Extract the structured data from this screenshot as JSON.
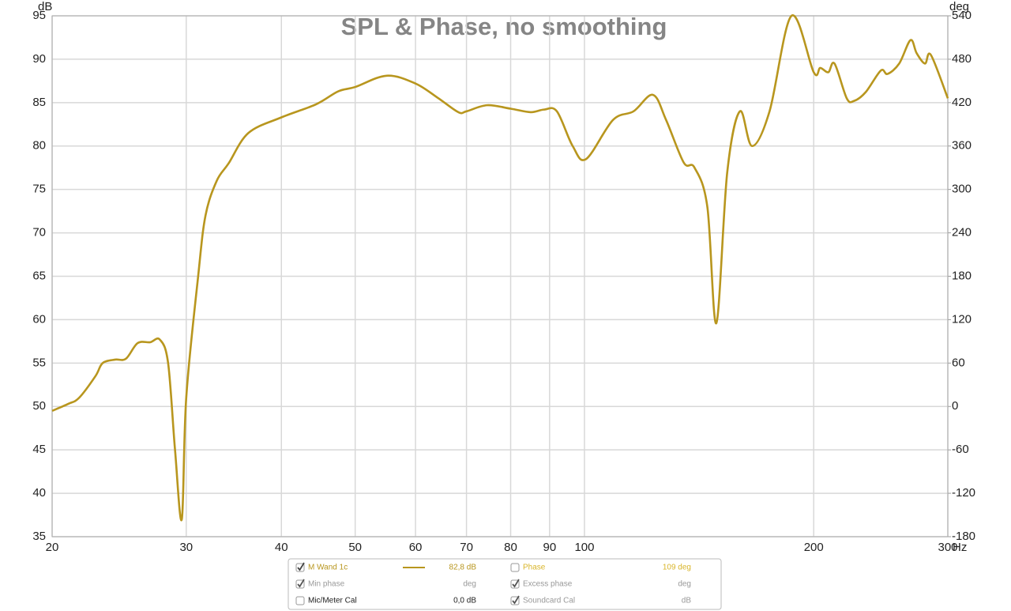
{
  "chart_data": {
    "type": "line",
    "title": "SPL & Phase, no smoothing",
    "y_label": "dB",
    "y2_label": "deg",
    "x_label": "Hz",
    "x_scale": "log",
    "xlim": [
      20,
      300
    ],
    "xticks": [
      20,
      30,
      40,
      50,
      60,
      70,
      80,
      90,
      100,
      200,
      300
    ],
    "ylim": [
      35,
      95
    ],
    "yticks": [
      35,
      40,
      45,
      50,
      55,
      60,
      65,
      70,
      75,
      80,
      85,
      90,
      95
    ],
    "y2lim": [
      -180,
      540
    ],
    "y2ticks": [
      -180,
      -120,
      -60,
      0,
      60,
      120,
      180,
      240,
      300,
      360,
      420,
      480,
      540
    ],
    "grid": true,
    "x": [
      20,
      21,
      21.7,
      22.8,
      23.3,
      24.2,
      25.0,
      25.9,
      26.9,
      27.7,
      28.4,
      29.0,
      29.6,
      30,
      31.1,
      31.8,
      32.9,
      34.1,
      36.2,
      40,
      44.4,
      47.5,
      50,
      55,
      60,
      64.3,
      68.3,
      70,
      74.5,
      80,
      85,
      88.5,
      92,
      96.5,
      100.5,
      109,
      116,
      123,
      128,
      135,
      139.5,
      145,
      149,
      154,
      160,
      166,
      175,
      187,
      200,
      204,
      209,
      213,
      221,
      226,
      234,
      245,
      250,
      259,
      268,
      273,
      280,
      285,
      300
    ],
    "series": [
      {
        "name": "M Wand 1c",
        "color": "#b8961e",
        "values": [
          49.5,
          50.3,
          51.0,
          53.5,
          55.0,
          55.4,
          55.5,
          57.3,
          57.4,
          57.7,
          55.0,
          45.0,
          37.0,
          51.0,
          65.0,
          72.0,
          76.0,
          78.0,
          81.5,
          83.3,
          84.8,
          86.3,
          86.8,
          88.1,
          87.2,
          85.5,
          83.9,
          84.0,
          84.7,
          84.3,
          83.9,
          84.2,
          84.0,
          80.0,
          78.5,
          83.0,
          84.0,
          85.9,
          83.0,
          78.1,
          77.5,
          73.0,
          59.6,
          77.0,
          84.0,
          80.0,
          84.0,
          95.0,
          88.5,
          89.0,
          88.5,
          89.5,
          85.5,
          85.2,
          86.2,
          88.7,
          88.3,
          89.5,
          92.2,
          90.7,
          89.5,
          90.5,
          85.5
        ]
      }
    ],
    "legend_panel": {
      "series_checked": true,
      "series_readout": "82,8 dB",
      "items": [
        {
          "label": "Phase",
          "readout": "109 deg",
          "checked": false,
          "color": "#d9b52a"
        },
        {
          "label": "Min phase",
          "readout": "deg",
          "checked": true,
          "color": "#999999"
        },
        {
          "label": "Excess phase",
          "readout": "deg",
          "checked": true,
          "color": "#999999"
        },
        {
          "label": "Mic/Meter Cal",
          "readout": "0,0 dB",
          "checked": false,
          "color": "#222222"
        },
        {
          "label": "Soundcard Cal",
          "readout": "dB",
          "checked": true,
          "color": "#999999"
        }
      ]
    }
  }
}
